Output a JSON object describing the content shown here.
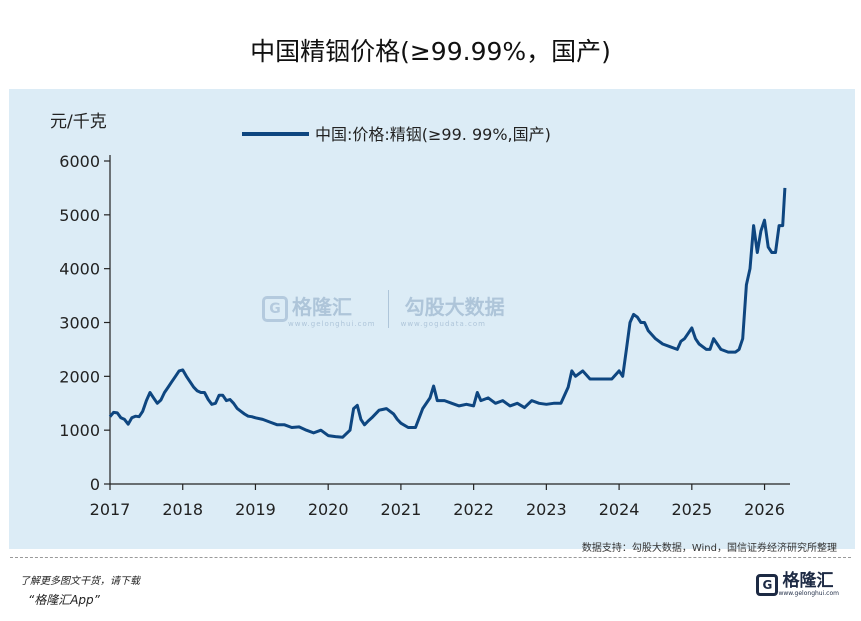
{
  "title": "中国精铟价格(≥99.99%，国产)",
  "unit_label": "元/千克",
  "legend_label": "中国:价格:精铟(≥99. 99%,国产)",
  "source": "数据支持：勾股大数据，Wind，国信证券经济研究所整理",
  "watermark": {
    "brand": "格隆汇",
    "brand_url": "www.gelonghui.com",
    "data_brand": "勾股大数据",
    "data_url": "www.gogudata.com",
    "icon": "g-logo-icon"
  },
  "footer": {
    "line1": "了解更多图文干货，请下载",
    "line2": "“格隆汇App”",
    "logo_name": "格隆汇",
    "logo_url": "www.gelonghui.com",
    "logo_icon": "g-logo-icon"
  },
  "colors": {
    "line": "#0e4680",
    "plot_bg": "#dcecf6"
  },
  "chart_data": {
    "type": "line",
    "title": "中国精铟价格(≥99.99%，国产)",
    "ylabel": "元/千克",
    "xlabel": "",
    "ylim": [
      0,
      6000
    ],
    "xlim": [
      2017,
      2026.35
    ],
    "yticks": [
      0,
      1000,
      2000,
      3000,
      4000,
      5000,
      6000
    ],
    "xticks": [
      2017,
      2018,
      2019,
      2020,
      2021,
      2022,
      2023,
      2024,
      2025,
      2026
    ],
    "grid": false,
    "legend_position": "top",
    "series": [
      {
        "name": "中国:价格:精铟(≥99. 99%,国产)",
        "color": "#0e4680",
        "x": [
          2017.0,
          2017.05,
          2017.1,
          2017.15,
          2017.2,
          2017.25,
          2017.3,
          2017.35,
          2017.4,
          2017.45,
          2017.5,
          2017.55,
          2017.6,
          2017.65,
          2017.7,
          2017.75,
          2017.8,
          2017.85,
          2017.9,
          2017.95,
          2018.0,
          2018.05,
          2018.1,
          2018.15,
          2018.2,
          2018.25,
          2018.3,
          2018.35,
          2018.4,
          2018.45,
          2018.5,
          2018.55,
          2018.6,
          2018.65,
          2018.7,
          2018.75,
          2018.8,
          2018.85,
          2018.9,
          2018.95,
          2019.0,
          2019.1,
          2019.2,
          2019.3,
          2019.4,
          2019.5,
          2019.6,
          2019.7,
          2019.8,
          2019.9,
          2020.0,
          2020.1,
          2020.2,
          2020.3,
          2020.35,
          2020.4,
          2020.45,
          2020.5,
          2020.55,
          2020.6,
          2020.7,
          2020.8,
          2020.9,
          2020.95,
          2021.0,
          2021.1,
          2021.2,
          2021.3,
          2021.4,
          2021.45,
          2021.5,
          2021.6,
          2021.7,
          2021.8,
          2021.9,
          2022.0,
          2022.05,
          2022.1,
          2022.2,
          2022.3,
          2022.4,
          2022.5,
          2022.6,
          2022.7,
          2022.8,
          2022.9,
          2023.0,
          2023.1,
          2023.2,
          2023.3,
          2023.35,
          2023.4,
          2023.5,
          2023.6,
          2023.7,
          2023.8,
          2023.9,
          2024.0,
          2024.05,
          2024.1,
          2024.15,
          2024.2,
          2024.25,
          2024.3,
          2024.35,
          2024.4,
          2024.5,
          2024.6,
          2024.7,
          2024.8,
          2024.85,
          2024.9,
          2024.95,
          2025.0,
          2025.05,
          2025.1,
          2025.2,
          2025.25,
          2025.3,
          2025.4,
          2025.5,
          2025.6,
          2025.65,
          2025.7,
          2025.75,
          2025.8,
          2025.85,
          2025.9,
          2025.95,
          2026.0,
          2026.05,
          2026.1,
          2026.15,
          2026.2,
          2026.25,
          2026.28
        ],
        "y": [
          1250,
          1330,
          1320,
          1230,
          1200,
          1110,
          1230,
          1260,
          1250,
          1350,
          1550,
          1700,
          1600,
          1500,
          1560,
          1700,
          1800,
          1900,
          2000,
          2100,
          2120,
          2000,
          1900,
          1800,
          1730,
          1700,
          1700,
          1570,
          1480,
          1500,
          1650,
          1650,
          1550,
          1570,
          1500,
          1400,
          1350,
          1300,
          1260,
          1250,
          1230,
          1200,
          1150,
          1100,
          1100,
          1050,
          1060,
          1000,
          950,
          1000,
          900,
          880,
          870,
          1000,
          1400,
          1460,
          1200,
          1100,
          1170,
          1230,
          1370,
          1400,
          1300,
          1200,
          1130,
          1050,
          1050,
          1400,
          1600,
          1820,
          1550,
          1550,
          1500,
          1450,
          1480,
          1450,
          1700,
          1550,
          1600,
          1500,
          1550,
          1450,
          1500,
          1420,
          1550,
          1500,
          1480,
          1500,
          1500,
          1800,
          2100,
          2000,
          2100,
          1950,
          1950,
          1950,
          1950,
          2100,
          2000,
          2500,
          3000,
          3150,
          3100,
          3000,
          3000,
          2850,
          2700,
          2600,
          2550,
          2500,
          2650,
          2700,
          2800,
          2900,
          2700,
          2600,
          2500,
          2500,
          2700,
          2500,
          2450,
          2450,
          2500,
          2700,
          3700,
          4000,
          4800,
          4300,
          4700,
          4900,
          4400,
          4300,
          4300,
          4800,
          4800,
          5500
        ]
      }
    ]
  }
}
